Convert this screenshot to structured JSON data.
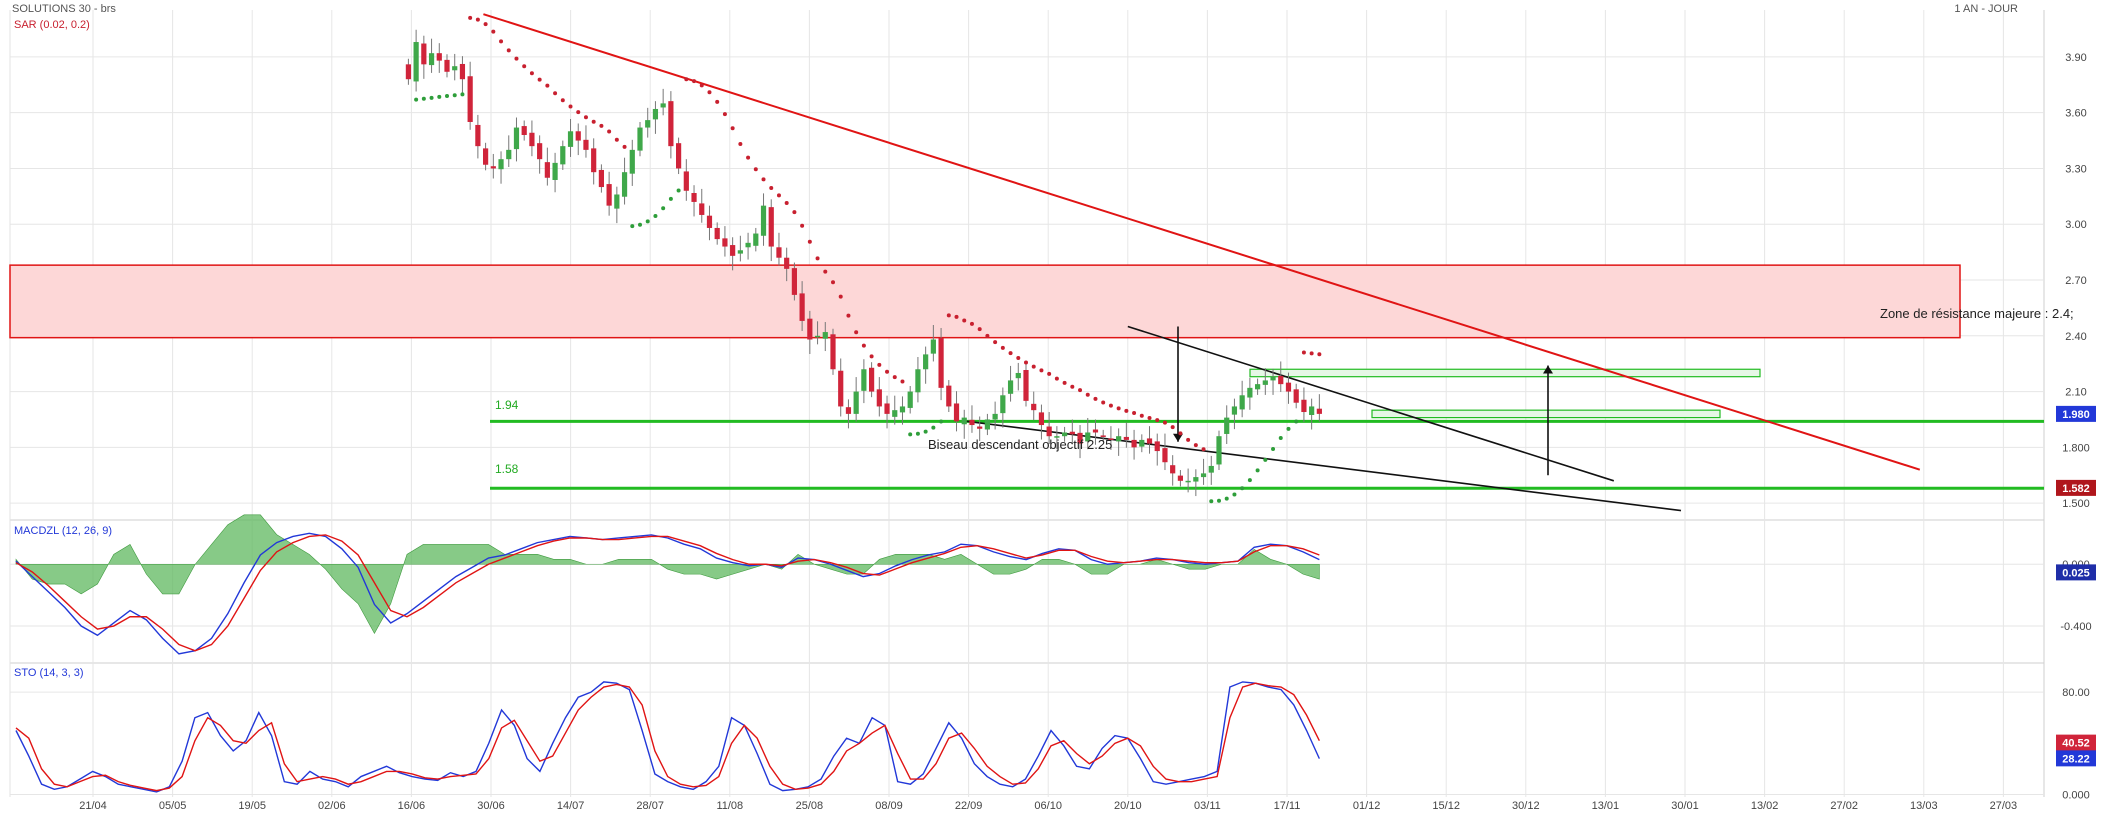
{
  "header": {
    "title": "SOLUTIONS 30 - brs",
    "period": "1 AN - JOUR"
  },
  "colors": {
    "up": "#3fa84a",
    "down": "#d0243a",
    "sar_up": "#2e9e3a",
    "sar_down": "#c8202f",
    "trend": "#e01414",
    "support": "#22bb22",
    "zone_fill": "#fdd7d7",
    "zone_stroke": "#e01414",
    "wedge": "#111111",
    "macd_line": "#2238d8",
    "signal_line": "#e01414",
    "hist": "#5fb85f",
    "grid": "#e6e6e6",
    "axis_text": "#444444"
  },
  "chart_data": [
    {
      "type": "candlestick",
      "panel": "price",
      "indicator_label": "SAR (0.02, 0.2)",
      "ylim": [
        1.42,
        4.12
      ],
      "y_ticks": [
        "3.90",
        "3.60",
        "3.30",
        "3.00",
        "2.70",
        "2.40",
        "2.10",
        "1.800",
        "1.500"
      ],
      "x_labels": [
        "21/04",
        "05/05",
        "19/05",
        "02/06",
        "16/06",
        "30/06",
        "14/07",
        "28/07",
        "11/08",
        "25/08",
        "08/09",
        "22/09",
        "06/10",
        "20/10",
        "03/11",
        "17/11",
        "01/12",
        "15/12",
        "30/12",
        "13/01",
        "30/01",
        "13/02",
        "27/02",
        "13/03",
        "27/03"
      ],
      "last_price_badge": "1.980",
      "support_badge": "1.582",
      "resistance_zone": {
        "from": 2.39,
        "to": 2.78,
        "label": "Zone de résistance majeure : 2.4;"
      },
      "supports": [
        {
          "value": 1.94,
          "label": "1.94"
        },
        {
          "value": 1.58,
          "label": "1.58"
        }
      ],
      "annotation": "Biseau descendant objectif 2.25",
      "trendline": {
        "start": [
          "16/06",
          4.13
        ],
        "end": [
          "13/03",
          1.68
        ]
      },
      "wedge_upper": {
        "start": [
          "20/10",
          2.45
        ],
        "end": [
          "30/12",
          1.62
        ]
      },
      "wedge_lower": {
        "start": [
          "22/09",
          1.94
        ],
        "end": [
          "30/01",
          1.46
        ]
      },
      "closes_start": "16/06",
      "closes": [
        3.78,
        3.98,
        3.86,
        3.92,
        3.88,
        3.82,
        3.85,
        3.78,
        3.55,
        3.42,
        3.32,
        3.3,
        3.35,
        3.4,
        3.52,
        3.48,
        3.42,
        3.35,
        3.25,
        3.33,
        3.42,
        3.5,
        3.45,
        3.4,
        3.28,
        3.2,
        3.1,
        3.16,
        3.28,
        3.4,
        3.52,
        3.56,
        3.62,
        3.65,
        3.42,
        3.3,
        3.18,
        3.12,
        3.05,
        2.98,
        2.92,
        2.88,
        2.83,
        2.86,
        2.9,
        2.95,
        3.1,
        2.88,
        2.82,
        2.76,
        2.62,
        2.48,
        2.38,
        2.4,
        2.42,
        2.22,
        2.02,
        1.98,
        2.1,
        2.22,
        2.1,
        2.02,
        1.98,
        2.0,
        2.02,
        2.1,
        2.22,
        2.3,
        2.38,
        2.12,
        2.02,
        1.94,
        1.96,
        1.92,
        1.9,
        1.95,
        1.98,
        2.08,
        2.16,
        2.2,
        2.05,
        2.0,
        1.92,
        1.86,
        1.86,
        1.88,
        1.87,
        1.82,
        1.88,
        1.88,
        1.86,
        1.84,
        1.86,
        1.84,
        1.8,
        1.84,
        1.82,
        1.78,
        1.72,
        1.66,
        1.62,
        1.62,
        1.64,
        1.66,
        1.7,
        1.86,
        1.96,
        2.02,
        2.08,
        2.12,
        2.14,
        2.16,
        2.18,
        2.14,
        2.1,
        2.04,
        1.99,
        2.02,
        1.98
      ]
    },
    {
      "type": "line",
      "panel": "macd",
      "label": "MACDZL (12, 26, 9)",
      "ylim": [
        -0.62,
        0.28
      ],
      "y_ticks": [
        "0.000",
        "-0.400"
      ],
      "badge": "0.025",
      "series": [
        {
          "name": "MACD",
          "points": [
            0.02,
            -0.08,
            -0.18,
            -0.28,
            -0.4,
            -0.46,
            -0.38,
            -0.3,
            -0.36,
            -0.48,
            -0.58,
            -0.56,
            -0.48,
            -0.32,
            -0.12,
            0.06,
            0.14,
            0.18,
            0.2,
            0.18,
            0.1,
            -0.02,
            -0.26,
            -0.38,
            -0.32,
            -0.24,
            -0.16,
            -0.08,
            -0.02,
            0.04,
            0.06,
            0.1,
            0.14,
            0.16,
            0.18,
            0.17,
            0.16,
            0.17,
            0.18,
            0.19,
            0.17,
            0.13,
            0.1,
            0.04,
            0.01,
            -0.01,
            0.0,
            -0.02,
            0.04,
            0.03,
            0.0,
            -0.04,
            -0.08,
            -0.06,
            -0.01,
            0.03,
            0.06,
            0.08,
            0.13,
            0.12,
            0.08,
            0.05,
            0.03,
            0.07,
            0.1,
            0.09,
            0.03,
            0.0,
            0.01,
            0.02,
            0.04,
            0.03,
            0.01,
            0.0,
            0.01,
            0.02,
            0.11,
            0.13,
            0.12,
            0.08,
            0.03
          ]
        },
        {
          "name": "Signal",
          "points": [
            0.01,
            -0.05,
            -0.14,
            -0.24,
            -0.34,
            -0.42,
            -0.4,
            -0.34,
            -0.34,
            -0.42,
            -0.52,
            -0.56,
            -0.52,
            -0.4,
            -0.22,
            -0.04,
            0.08,
            0.14,
            0.18,
            0.19,
            0.15,
            0.06,
            -0.12,
            -0.3,
            -0.34,
            -0.28,
            -0.2,
            -0.12,
            -0.06,
            0.0,
            0.04,
            0.08,
            0.12,
            0.15,
            0.17,
            0.17,
            0.16,
            0.16,
            0.17,
            0.18,
            0.18,
            0.15,
            0.12,
            0.07,
            0.03,
            0.0,
            0.0,
            -0.01,
            0.02,
            0.03,
            0.01,
            -0.02,
            -0.06,
            -0.07,
            -0.03,
            0.01,
            0.04,
            0.07,
            0.11,
            0.12,
            0.1,
            0.07,
            0.04,
            0.06,
            0.09,
            0.09,
            0.05,
            0.02,
            0.01,
            0.02,
            0.03,
            0.03,
            0.02,
            0.01,
            0.01,
            0.02,
            0.08,
            0.12,
            0.12,
            0.1,
            0.06
          ]
        }
      ]
    },
    {
      "type": "line",
      "panel": "stochastic",
      "label": "STO (14, 3, 3)",
      "ylim": [
        -2,
        102
      ],
      "y_ticks": [
        "80.00",
        "0.000"
      ],
      "badges": [
        "40.52",
        "28.22"
      ],
      "series": [
        {
          "name": "%K",
          "points": [
            50,
            30,
            8,
            4,
            6,
            12,
            18,
            14,
            8,
            6,
            4,
            2,
            6,
            26,
            60,
            64,
            46,
            34,
            42,
            64,
            46,
            10,
            8,
            18,
            12,
            10,
            6,
            14,
            18,
            22,
            17,
            14,
            12,
            11,
            17,
            14,
            18,
            40,
            66,
            54,
            28,
            18,
            40,
            60,
            76,
            80,
            88,
            87,
            82,
            50,
            16,
            10,
            6,
            4,
            10,
            22,
            60,
            54,
            32,
            8,
            3,
            4,
            6,
            12,
            30,
            44,
            40,
            60,
            54,
            10,
            8,
            16,
            36,
            56,
            44,
            24,
            14,
            8,
            6,
            12,
            30,
            50,
            38,
            22,
            20,
            36,
            46,
            44,
            28,
            10,
            8,
            10,
            12,
            14,
            18,
            84,
            88,
            87,
            84,
            82,
            70,
            50,
            28
          ]
        },
        {
          "name": "%D",
          "points": [
            52,
            44,
            20,
            8,
            6,
            10,
            14,
            15,
            10,
            7,
            5,
            3,
            5,
            14,
            42,
            60,
            54,
            42,
            40,
            50,
            56,
            24,
            10,
            12,
            14,
            12,
            8,
            10,
            14,
            18,
            18,
            16,
            13,
            12,
            14,
            15,
            16,
            28,
            52,
            58,
            42,
            26,
            30,
            48,
            66,
            76,
            84,
            86,
            84,
            70,
            34,
            14,
            8,
            6,
            7,
            14,
            40,
            54,
            44,
            22,
            8,
            4,
            5,
            8,
            18,
            34,
            40,
            48,
            54,
            32,
            12,
            12,
            24,
            44,
            48,
            36,
            22,
            14,
            8,
            9,
            20,
            38,
            42,
            32,
            24,
            30,
            40,
            44,
            38,
            22,
            12,
            10,
            10,
            12,
            14,
            60,
            84,
            87,
            85,
            84,
            78,
            62,
            42
          ]
        }
      ]
    }
  ]
}
